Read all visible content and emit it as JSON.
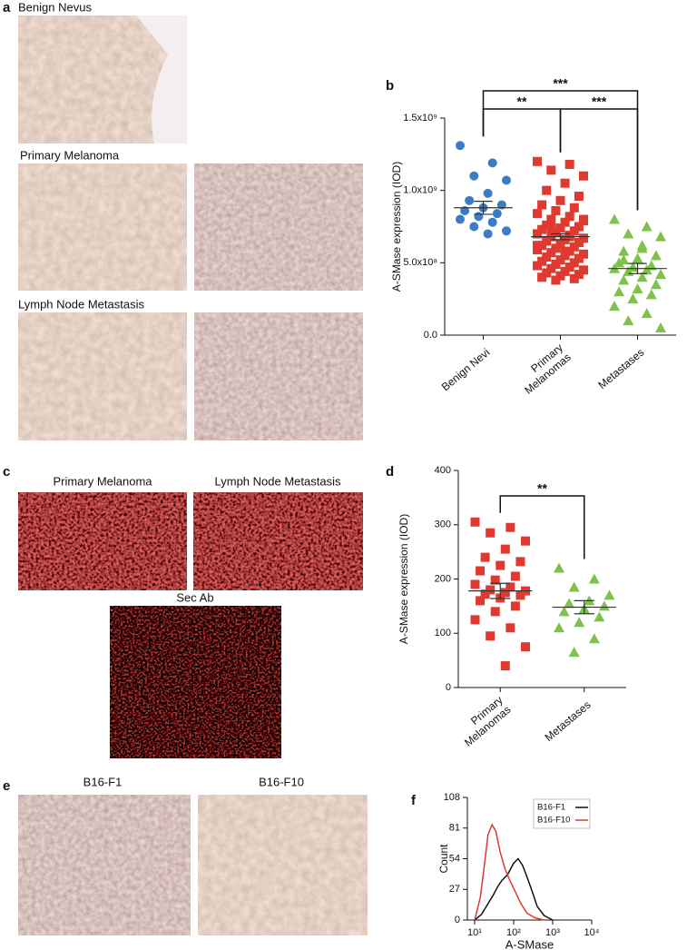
{
  "panels": {
    "a": {
      "letter": "a",
      "captions": [
        "Benign Nevus",
        "Primary Melanoma",
        "Lymph Node Metastasis"
      ]
    },
    "c": {
      "letter": "c",
      "captions": [
        "Primary Melanoma",
        "Lymph Node Metastasis",
        "Sec Ab"
      ]
    },
    "e": {
      "letter": "e",
      "captions": [
        "B16-F1",
        "B16-F10"
      ]
    }
  },
  "chart_data": [
    {
      "type": "strip",
      "panel": "b",
      "ylabel": "A-SMase expression (IOD)",
      "categories": [
        "Benign Nevi",
        "Primary\nMelanomas",
        "Metastases"
      ],
      "ylim": [
        0,
        1500000000.0
      ],
      "yticks": [
        {
          "value": 0,
          "label": "0.0"
        },
        {
          "value": 500000000.0,
          "label": "5.0x10⁸"
        },
        {
          "value": 1000000000.0,
          "label": "1.0x10⁹"
        },
        {
          "value": 1500000000.0,
          "label": "1.5x10⁹"
        }
      ],
      "groups": [
        {
          "color": "#3b7cc6",
          "marker": "circle",
          "values": [
            1310000000.0,
            1190000000.0,
            1100000000.0,
            1070000000.0,
            980000000.0,
            930000000.0,
            900000000.0,
            880000000.0,
            860000000.0,
            840000000.0,
            820000000.0,
            800000000.0,
            780000000.0,
            750000000.0,
            720000000.0,
            700000000.0
          ]
        },
        {
          "color": "#e03a30",
          "marker": "square",
          "values": [
            1200000000.0,
            1180000000.0,
            1140000000.0,
            1100000000.0,
            1050000000.0,
            1000000000.0,
            960000000.0,
            930000000.0,
            900000000.0,
            880000000.0,
            860000000.0,
            840000000.0,
            820000000.0,
            800000000.0,
            790000000.0,
            780000000.0,
            760000000.0,
            750000000.0,
            740000000.0,
            730000000.0,
            720000000.0,
            710000000.0,
            700000000.0,
            690000000.0,
            680000000.0,
            670000000.0,
            660000000.0,
            650000000.0,
            640000000.0,
            630000000.0,
            620000000.0,
            610000000.0,
            600000000.0,
            590000000.0,
            580000000.0,
            570000000.0,
            560000000.0,
            550000000.0,
            540000000.0,
            530000000.0,
            520000000.0,
            510000000.0,
            500000000.0,
            490000000.0,
            480000000.0,
            470000000.0,
            460000000.0,
            450000000.0,
            440000000.0,
            430000000.0,
            420000000.0,
            410000000.0,
            400000000.0,
            390000000.0,
            380000000.0,
            620000000.0,
            680000000.0,
            740000000.0,
            800000000.0,
            580000000.0
          ]
        },
        {
          "color": "#7dc24a",
          "marker": "triangle",
          "values": [
            800000000.0,
            750000000.0,
            700000000.0,
            680000000.0,
            620000000.0,
            580000000.0,
            550000000.0,
            530000000.0,
            500000000.0,
            480000000.0,
            470000000.0,
            460000000.0,
            450000000.0,
            440000000.0,
            420000000.0,
            400000000.0,
            380000000.0,
            350000000.0,
            320000000.0,
            300000000.0,
            280000000.0,
            250000000.0,
            200000000.0,
            150000000.0,
            100000000.0,
            50000000.0,
            600000000.0,
            520000000.0
          ]
        }
      ],
      "means": [
        880000000.0,
        680000000.0,
        460000000.0
      ],
      "errors": [
        45000000.0,
        20000000.0,
        35000000.0
      ],
      "brackets": [
        {
          "from": 0,
          "to": 1,
          "label": "**"
        },
        {
          "from": 1,
          "to": 2,
          "label": "***"
        },
        {
          "from": 0,
          "to": 2,
          "label": "***"
        }
      ]
    },
    {
      "type": "strip",
      "panel": "d",
      "ylabel": "A-SMase expression (IOD)",
      "categories": [
        "Primary\nMelanomas",
        "Metastases"
      ],
      "ylim": [
        0,
        400
      ],
      "yticks": [
        0,
        100,
        200,
        300,
        400
      ],
      "groups": [
        {
          "color": "#e03a30",
          "marker": "square",
          "values": [
            305,
            295,
            285,
            270,
            255,
            240,
            232,
            225,
            215,
            205,
            198,
            190,
            185,
            180,
            178,
            175,
            172,
            170,
            165,
            160,
            150,
            140,
            125,
            110,
            95,
            75,
            40
          ]
        },
        {
          "color": "#7dc24a",
          "marker": "triangle",
          "values": [
            220,
            200,
            185,
            170,
            160,
            155,
            150,
            145,
            140,
            130,
            120,
            110,
            90,
            65
          ]
        }
      ],
      "means": [
        178,
        148
      ],
      "errors": [
        14,
        12
      ],
      "brackets": [
        {
          "from": 0,
          "to": 1,
          "label": "**"
        }
      ]
    },
    {
      "type": "line",
      "panel": "f",
      "xlabel": "A-SMase",
      "ylabel": "Count",
      "xscale": "log",
      "legend": "top-right",
      "xlim": [
        10,
        10000
      ],
      "xticks": [
        {
          "value": 10,
          "label": "10¹"
        },
        {
          "value": 100,
          "label": "10²"
        },
        {
          "value": 1000,
          "label": "10³"
        },
        {
          "value": 10000,
          "label": "10⁴"
        }
      ],
      "ylim": [
        0,
        108
      ],
      "yticks": [
        0,
        27,
        54,
        81,
        108
      ],
      "series": [
        {
          "name": "B16-F1",
          "color": "#111111",
          "x": [
            10,
            15,
            20,
            30,
            40,
            50,
            70,
            100,
            130,
            170,
            220,
            300,
            400,
            600,
            1000
          ],
          "values": [
            0,
            5,
            12,
            22,
            30,
            35,
            40,
            50,
            54,
            48,
            38,
            25,
            12,
            4,
            0
          ]
        },
        {
          "name": "B16-F10",
          "color": "#e0392c",
          "x": [
            10,
            14,
            18,
            22,
            28,
            35,
            45,
            60,
            80,
            110,
            150,
            220,
            350,
            600
          ],
          "values": [
            0,
            20,
            50,
            75,
            84,
            78,
            60,
            45,
            35,
            25,
            15,
            6,
            2,
            0
          ]
        }
      ]
    }
  ]
}
